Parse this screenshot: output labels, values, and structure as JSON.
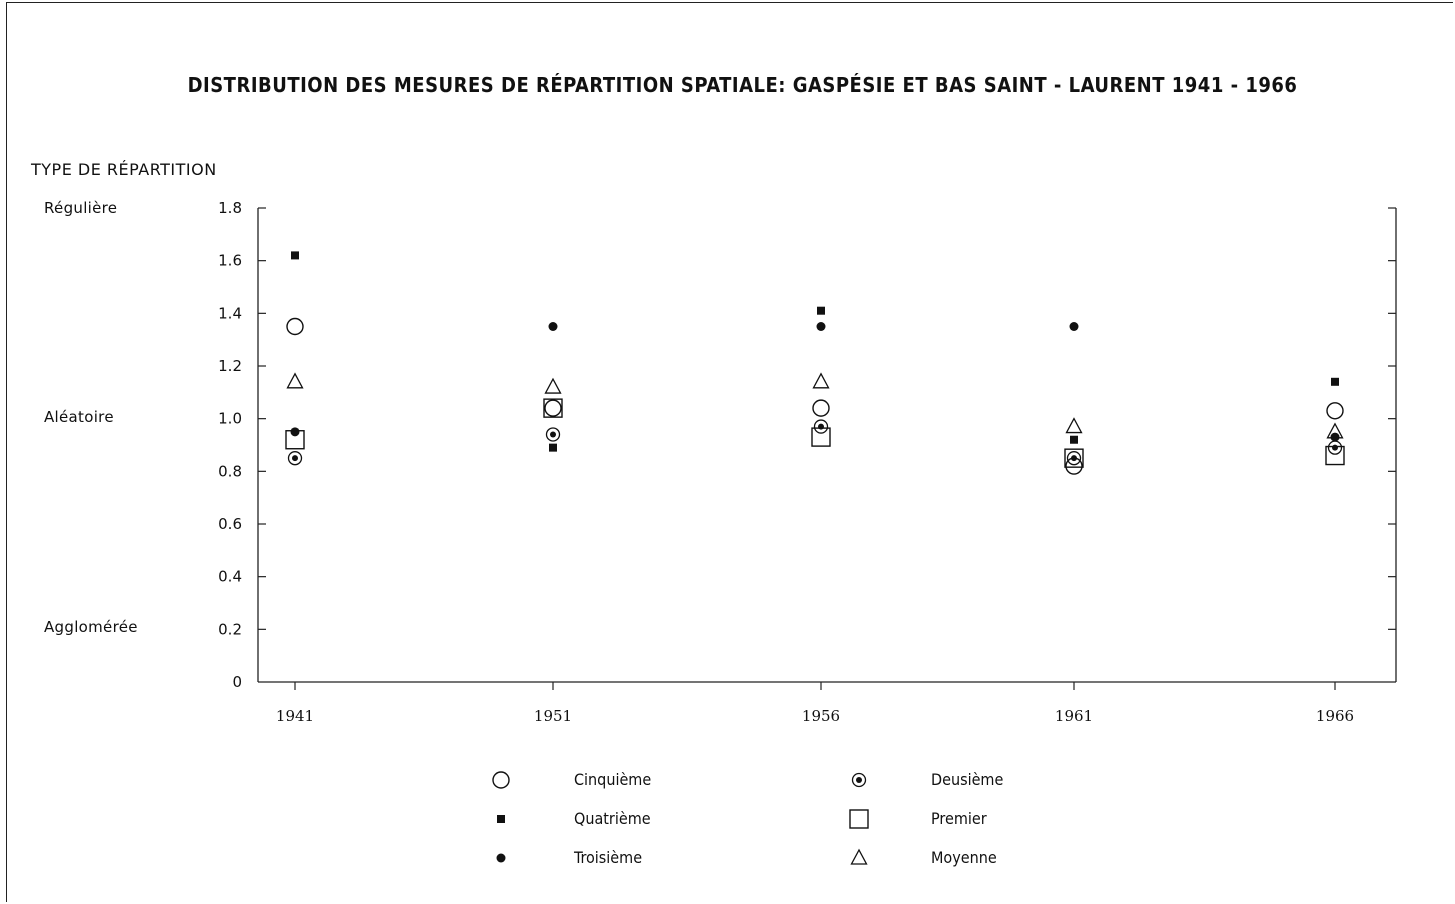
{
  "chart_data": {
    "type": "scatter",
    "title": "DISTRIBUTION DES MESURES DE RÉPARTITION SPATIALE: GASPÉSIE ET BAS SAINT - LAURENT 1941 - 1966",
    "ylabel": "TYPE DE RÉPARTITION",
    "categories": [
      "1941",
      "1951",
      "1956",
      "1961",
      "1966"
    ],
    "ylim": [
      0,
      1.8
    ],
    "yticks": [
      "0",
      "0.2",
      "0.4",
      "0.6",
      "0.8",
      "1.0",
      "1.2",
      "1.4",
      "1.6",
      "1.8"
    ],
    "y_categories": [
      {
        "label": "Régulière",
        "value": 1.8
      },
      {
        "label": "Aléatoire",
        "value": 1.0
      },
      {
        "label": "Agglomérée",
        "value": 0.2
      }
    ],
    "series": [
      {
        "name": "Cinquième",
        "marker": "circle-open",
        "values": [
          1.35,
          1.04,
          1.04,
          0.82,
          1.03
        ]
      },
      {
        "name": "Quatrième",
        "marker": "square-filled",
        "values": [
          1.62,
          0.89,
          1.41,
          0.92,
          1.14
        ]
      },
      {
        "name": "Troisième",
        "marker": "circle-filled",
        "values": [
          0.95,
          1.35,
          1.35,
          1.35,
          0.93
        ]
      },
      {
        "name": "Deusième",
        "marker": "circle-dot",
        "values": [
          0.85,
          0.94,
          0.97,
          0.85,
          0.89
        ]
      },
      {
        "name": "Premier",
        "marker": "square-open",
        "values": [
          0.92,
          1.04,
          0.93,
          0.85,
          0.86
        ]
      },
      {
        "name": "Moyenne",
        "marker": "triangle-open",
        "values": [
          1.14,
          1.12,
          1.14,
          0.97,
          0.95
        ]
      }
    ],
    "grid": false,
    "legend_position": "bottom"
  }
}
